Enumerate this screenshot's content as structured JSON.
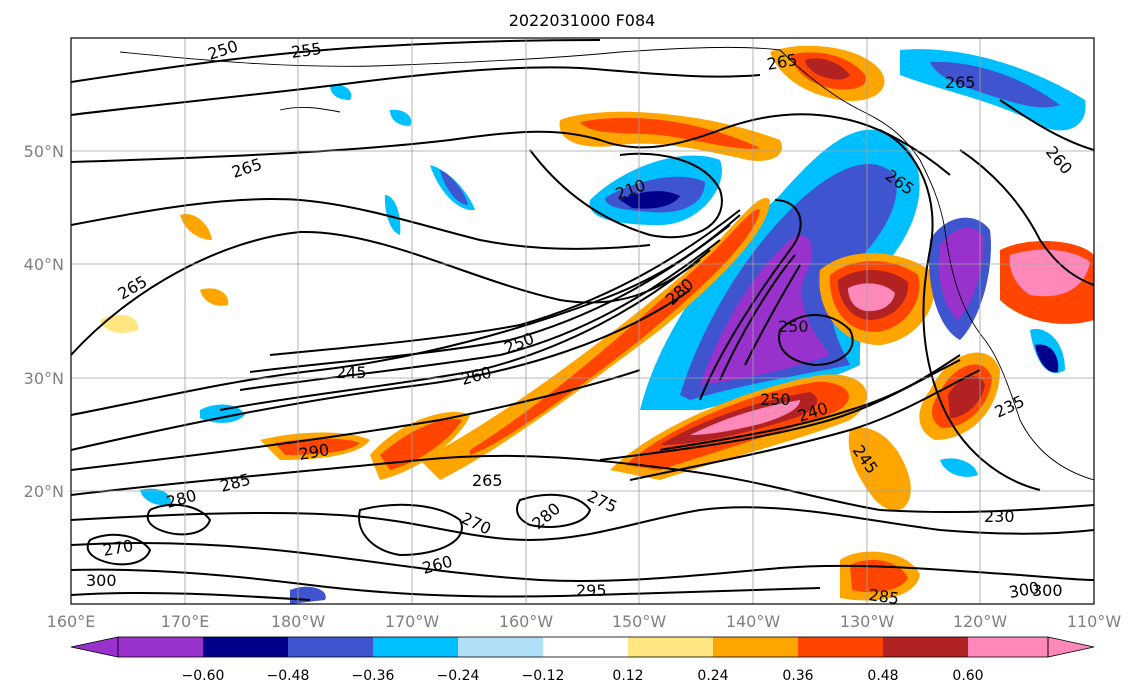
{
  "title": "2022031000 F084",
  "x_ticks": [
    "160°E",
    "170°E",
    "180°W",
    "170°W",
    "160°W",
    "150°W",
    "140°W",
    "130°W",
    "120°W",
    "110°W"
  ],
  "y_ticks": [
    "20°N",
    "30°N",
    "40°N",
    "50°N"
  ],
  "colorbar": {
    "labels": [
      "−0.60",
      "−0.48",
      "−0.36",
      "−0.24",
      "−0.12",
      "0.12",
      "0.24",
      "0.36",
      "0.48",
      "0.60"
    ],
    "colors": [
      "#9932cc",
      "#00008b",
      "#3e55cf",
      "#00bfff",
      "#b0e0f8",
      "#ffffff",
      "#ffe680",
      "#ffa500",
      "#ff4500",
      "#b22222",
      "#ff88bb"
    ]
  },
  "contour_labels": [
    "250",
    "255",
    "265",
    "265",
    "210",
    "265",
    "265",
    "260",
    "265",
    "280",
    "250",
    "250",
    "245",
    "260",
    "240",
    "250",
    "235",
    "290",
    "285",
    "280",
    "265",
    "275",
    "270",
    "280",
    "260",
    "245",
    "230",
    "295",
    "285",
    "300",
    "270",
    "300",
    "300"
  ]
}
